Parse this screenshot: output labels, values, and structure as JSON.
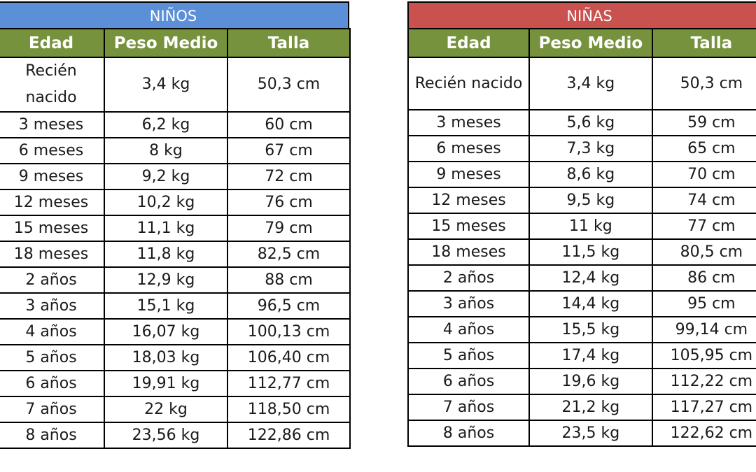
{
  "boys": {
    "title": "NIÑOS",
    "title_color": "#5b8fd8",
    "headers": [
      "Edad",
      "Peso Medio",
      "Talla"
    ],
    "rows": [
      [
        "Recién nacido",
        "3,4 kg",
        "50,3 cm"
      ],
      [
        "3 meses",
        "6,2 kg",
        "60 cm"
      ],
      [
        "6 meses",
        "8 kg",
        "67 cm"
      ],
      [
        "9 meses",
        "9,2 kg",
        "72 cm"
      ],
      [
        "12 meses",
        "10,2 kg",
        "76 cm"
      ],
      [
        "15 meses",
        "11,1 kg",
        "79 cm"
      ],
      [
        "18 meses",
        "11,8 kg",
        "82,5 cm"
      ],
      [
        "2 años",
        "12,9 kg",
        "88 cm"
      ],
      [
        "3 años",
        "15,1 kg",
        "96,5 cm"
      ],
      [
        "4 años",
        "16,07 kg",
        "100,13 cm"
      ],
      [
        "5 años",
        "18,03 kg",
        "106,40 cm"
      ],
      [
        "6 años",
        "19,91 kg",
        "112,77 cm"
      ],
      [
        "7 años",
        "22 kg",
        "118,50 cm"
      ],
      [
        "8 años",
        "23,56 kg",
        "122,86 cm"
      ]
    ]
  },
  "girls": {
    "title": "NIÑAS",
    "title_color": "#c9524f",
    "headers": [
      "Edad",
      "Peso Medio",
      "Talla"
    ],
    "rows": [
      [
        "Recién nacido",
        "3,4 kg",
        "50,3 cm"
      ],
      [
        "3 meses",
        "5,6 kg",
        "59 cm"
      ],
      [
        "6 meses",
        "7,3 kg",
        "65 cm"
      ],
      [
        "9 meses",
        "8,6 kg",
        "70 cm"
      ],
      [
        "12 meses",
        "9,5 kg",
        "74 cm"
      ],
      [
        "15 meses",
        "11 kg",
        "77 cm"
      ],
      [
        "18 meses",
        "11,5 kg",
        "80,5 cm"
      ],
      [
        "2 años",
        "12,4 kg",
        "86 cm"
      ],
      [
        "3 años",
        "14,4 kg",
        "95 cm"
      ],
      [
        "4 años",
        "15,5 kg",
        "99,14 cm"
      ],
      [
        "5 años",
        "17,4 kg",
        "105,95 cm"
      ],
      [
        "6 años",
        "19,6 kg",
        "112,22 cm"
      ],
      [
        "7 años",
        "21,2 kg",
        "117,27 cm"
      ],
      [
        "8 años",
        "23,5 kg",
        "122,62 cm"
      ]
    ]
  },
  "header_color": "#76923c"
}
